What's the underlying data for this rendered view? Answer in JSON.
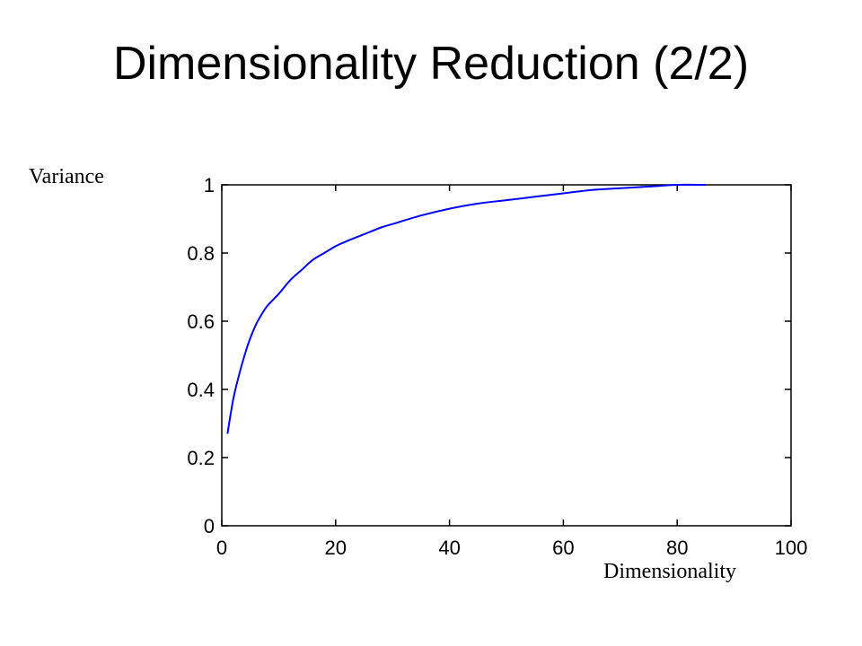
{
  "slide": {
    "title": "Dimensionality Reduction (2/2)"
  },
  "chart_data": {
    "type": "line",
    "title": "",
    "xlabel": "Dimensionality",
    "ylabel": "Variance",
    "xlim": [
      0,
      100
    ],
    "ylim": [
      0,
      1
    ],
    "xticks": [
      0,
      20,
      40,
      60,
      80,
      100
    ],
    "xtick_labels": [
      "0",
      "20",
      "40",
      "60",
      "80",
      "100"
    ],
    "yticks": [
      0,
      0.2,
      0.4,
      0.6,
      0.8,
      1
    ],
    "ytick_labels": [
      "0",
      "0.2",
      "0.4",
      "0.6",
      "0.8",
      "1"
    ],
    "grid": false,
    "series": [
      {
        "color": "#0000ff",
        "x": [
          1,
          2,
          3,
          4,
          5,
          6,
          7,
          8,
          10,
          12,
          14,
          16,
          18,
          20,
          22,
          25,
          28,
          30,
          35,
          40,
          45,
          50,
          55,
          60,
          65,
          70,
          75,
          80,
          85
        ],
        "y": [
          0.27,
          0.37,
          0.44,
          0.5,
          0.55,
          0.59,
          0.62,
          0.645,
          0.68,
          0.72,
          0.75,
          0.78,
          0.8,
          0.82,
          0.835,
          0.855,
          0.875,
          0.885,
          0.91,
          0.93,
          0.945,
          0.955,
          0.965,
          0.975,
          0.985,
          0.99,
          0.995,
          1.0,
          1.0
        ]
      }
    ]
  }
}
